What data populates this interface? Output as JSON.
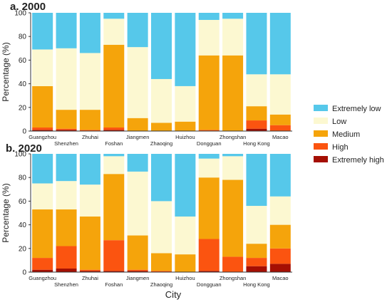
{
  "xlabel": "City",
  "chart_data": [
    {
      "type": "bar",
      "stacked": true,
      "title": "a. 2000",
      "ylabel": "Percentage (%)",
      "ylim": [
        0,
        100
      ],
      "yticks": [
        0,
        20,
        40,
        60,
        80,
        100
      ],
      "categories": [
        "Guangzhou",
        "Shenzhen",
        "Zhuhai",
        "Foshan",
        "Jiangmen",
        "Zhaoqing",
        "Huizhou",
        "Dongguan",
        "Zhongshan",
        "Hong Kong",
        "Macao"
      ],
      "series": [
        {
          "name": "Extremely high",
          "values": [
            1,
            1,
            0,
            1,
            0,
            0,
            0,
            0,
            0,
            2,
            0
          ]
        },
        {
          "name": "High",
          "values": [
            2,
            1,
            1,
            2,
            0,
            0,
            0,
            1,
            0,
            7,
            5
          ]
        },
        {
          "name": "Medium",
          "values": [
            35,
            16,
            17,
            70,
            11,
            7,
            8,
            63,
            64,
            12,
            9
          ]
        },
        {
          "name": "Low",
          "values": [
            31,
            52,
            48,
            22,
            60,
            37,
            30,
            30,
            31,
            27,
            34
          ]
        },
        {
          "name": "Extremely low",
          "values": [
            31,
            30,
            34,
            5,
            29,
            56,
            62,
            6,
            5,
            52,
            52
          ]
        }
      ]
    },
    {
      "type": "bar",
      "stacked": true,
      "title": "b. 2020",
      "ylabel": "Percentage (%)",
      "ylim": [
        0,
        100
      ],
      "yticks": [
        0,
        20,
        40,
        60,
        80,
        100
      ],
      "categories": [
        "Guangzhou",
        "Shenzhen",
        "Zhuhai",
        "Foshan",
        "Jiangmen",
        "Zhaoqing",
        "Huizhou",
        "Dongguan",
        "Zhongshan",
        "Hong Kong",
        "Macao"
      ],
      "series": [
        {
          "name": "Extremely high",
          "values": [
            2,
            3,
            1,
            1,
            1,
            0,
            0,
            1,
            0,
            5,
            7
          ]
        },
        {
          "name": "High",
          "values": [
            10,
            19,
            1,
            26,
            1,
            1,
            0,
            27,
            13,
            7,
            13
          ]
        },
        {
          "name": "Medium",
          "values": [
            41,
            31,
            45,
            56,
            29,
            15,
            15,
            52,
            65,
            12,
            20
          ]
        },
        {
          "name": "Low",
          "values": [
            22,
            24,
            27,
            15,
            54,
            44,
            32,
            16,
            20,
            32,
            24
          ]
        },
        {
          "name": "Extremely low",
          "values": [
            25,
            23,
            26,
            2,
            15,
            40,
            53,
            4,
            2,
            44,
            36
          ]
        }
      ]
    }
  ],
  "legend": {
    "placement": "right",
    "items": [
      {
        "label": "Extremely low",
        "color": "#56c8ea"
      },
      {
        "label": "Low",
        "color": "#fcf8d1"
      },
      {
        "label": "Medium",
        "color": "#f5a40b"
      },
      {
        "label": "High",
        "color": "#fb5410"
      },
      {
        "label": "Extremely high",
        "color": "#a50f03"
      }
    ]
  },
  "colors": {
    "Extremely low": "#56c8ea",
    "Low": "#fcf8d1",
    "Medium": "#f5a40b",
    "High": "#fb5410",
    "Extremely high": "#a50f03"
  }
}
